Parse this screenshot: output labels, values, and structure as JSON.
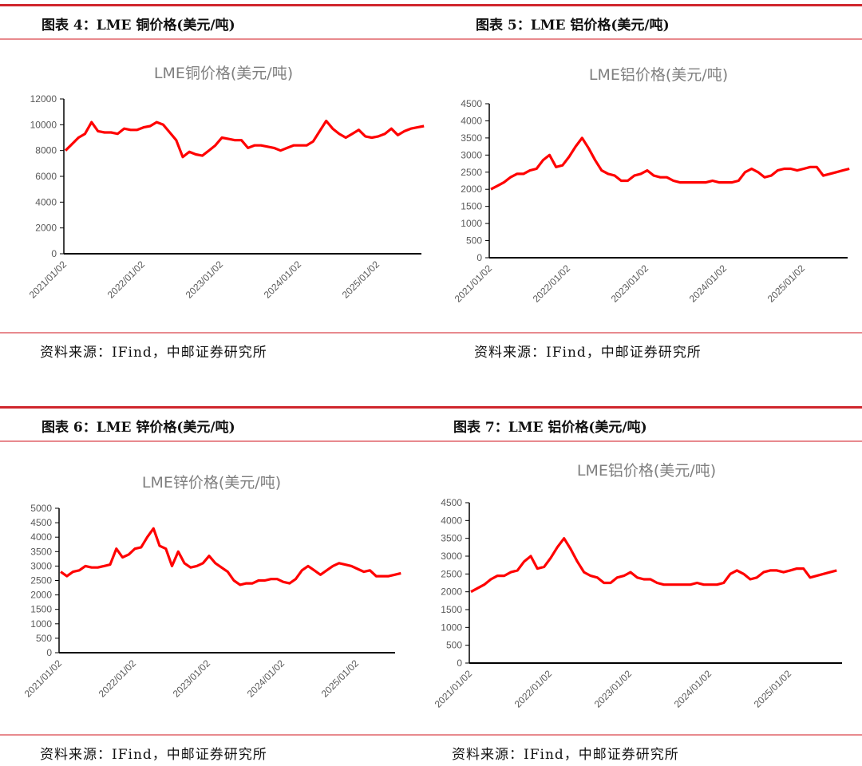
{
  "panels": [
    {
      "heading": "图表 4：LME 铜价格(美元/吨)",
      "source": "资料来源：IFind，中邮证券研究所"
    },
    {
      "heading": "图表 5：LME 铝价格(美元/吨)",
      "source": "资料来源：IFind，中邮证券研究所"
    },
    {
      "heading": "图表 6：LME 锌价格(美元/吨)",
      "source": "资料来源：IFind，中邮证券研究所"
    },
    {
      "heading": "图表 7：LME 铝价格(美元/吨)",
      "source": "资料来源：IFind，中邮证券研究所"
    }
  ],
  "colors": {
    "line": "#ff0000",
    "rule": "#d0262d",
    "title": "#7f7f7f"
  },
  "chart_data": [
    {
      "type": "line",
      "title": "LME铜价格(美元/吨)",
      "xlabel": "",
      "ylabel": "",
      "ylim": [
        0,
        12000
      ],
      "yticks": [
        "0",
        "2000",
        "4000",
        "6000",
        "8000",
        "10000",
        "12000"
      ],
      "xticks": [
        "2021/01/02",
        "2022/01/02",
        "2023/01/02",
        "2024/01/02",
        "2025/01/02"
      ],
      "grid": false,
      "x": [
        "2021-01",
        "2021-02",
        "2021-03",
        "2021-04",
        "2021-05",
        "2021-06",
        "2021-07",
        "2021-08",
        "2021-09",
        "2021-10",
        "2021-11",
        "2021-12",
        "2022-01",
        "2022-02",
        "2022-03",
        "2022-04",
        "2022-05",
        "2022-06",
        "2022-07",
        "2022-08",
        "2022-09",
        "2022-10",
        "2022-11",
        "2022-12",
        "2023-01",
        "2023-02",
        "2023-03",
        "2023-04",
        "2023-05",
        "2023-06",
        "2023-07",
        "2023-08",
        "2023-09",
        "2023-10",
        "2023-11",
        "2023-12",
        "2024-01",
        "2024-02",
        "2024-03",
        "2024-04",
        "2024-05",
        "2024-06",
        "2024-07",
        "2024-08",
        "2024-09",
        "2024-10",
        "2024-11",
        "2024-12",
        "2025-01",
        "2025-02",
        "2025-03",
        "2025-04",
        "2025-05",
        "2025-06",
        "2025-07",
        "2025-08"
      ],
      "y": [
        8000,
        8500,
        9000,
        9300,
        10200,
        9500,
        9400,
        9400,
        9300,
        9700,
        9600,
        9600,
        9800,
        9900,
        10200,
        10000,
        9400,
        8800,
        7500,
        7900,
        7700,
        7600,
        8000,
        8400,
        9000,
        8900,
        8800,
        8800,
        8200,
        8400,
        8400,
        8300,
        8200,
        8000,
        8200,
        8400,
        8400,
        8400,
        8700,
        9500,
        10300,
        9700,
        9300,
        9000,
        9300,
        9600,
        9100,
        9000,
        9100,
        9300,
        9700,
        9200,
        9500,
        9700,
        9800,
        9900
      ]
    },
    {
      "type": "line",
      "title": "LME铝价格(美元/吨)",
      "xlabel": "",
      "ylabel": "",
      "ylim": [
        0,
        4500
      ],
      "yticks": [
        "0",
        "500",
        "1000",
        "1500",
        "2000",
        "2500",
        "3000",
        "3500",
        "4000",
        "4500"
      ],
      "xticks": [
        "2021/01/02",
        "2022/01/02",
        "2023/01/02",
        "2024/01/02",
        "2025/01/02"
      ],
      "grid": false,
      "x": [
        "2021-01",
        "2021-02",
        "2021-03",
        "2021-04",
        "2021-05",
        "2021-06",
        "2021-07",
        "2021-08",
        "2021-09",
        "2021-10",
        "2021-11",
        "2021-12",
        "2022-01",
        "2022-02",
        "2022-03",
        "2022-04",
        "2022-05",
        "2022-06",
        "2022-07",
        "2022-08",
        "2022-09",
        "2022-10",
        "2022-11",
        "2022-12",
        "2023-01",
        "2023-02",
        "2023-03",
        "2023-04",
        "2023-05",
        "2023-06",
        "2023-07",
        "2023-08",
        "2023-09",
        "2023-10",
        "2023-11",
        "2023-12",
        "2024-01",
        "2024-02",
        "2024-03",
        "2024-04",
        "2024-05",
        "2024-06",
        "2024-07",
        "2024-08",
        "2024-09",
        "2024-10",
        "2024-11",
        "2024-12",
        "2025-01",
        "2025-02",
        "2025-03",
        "2025-04",
        "2025-05",
        "2025-06",
        "2025-07",
        "2025-08"
      ],
      "y": [
        2000,
        2100,
        2200,
        2350,
        2450,
        2450,
        2550,
        2600,
        2850,
        3000,
        2650,
        2700,
        2950,
        3250,
        3500,
        3200,
        2850,
        2550,
        2450,
        2400,
        2250,
        2250,
        2400,
        2450,
        2550,
        2400,
        2350,
        2350,
        2250,
        2200,
        2200,
        2200,
        2200,
        2200,
        2250,
        2200,
        2200,
        2200,
        2250,
        2500,
        2600,
        2500,
        2350,
        2400,
        2550,
        2600,
        2600,
        2550,
        2600,
        2650,
        2650,
        2400,
        2450,
        2500,
        2550,
        2600
      ]
    },
    {
      "type": "line",
      "title": "LME锌价格(美元/吨)",
      "xlabel": "",
      "ylabel": "",
      "ylim": [
        0,
        5000
      ],
      "yticks": [
        "0",
        "500",
        "1000",
        "1500",
        "2000",
        "2500",
        "3000",
        "3500",
        "4000",
        "4500",
        "5000"
      ],
      "xticks": [
        "2021/01/02",
        "2022/01/02",
        "2023/01/02",
        "2024/01/02",
        "2025/01/02"
      ],
      "grid": false,
      "x": [
        "2021-01",
        "2021-02",
        "2021-03",
        "2021-04",
        "2021-05",
        "2021-06",
        "2021-07",
        "2021-08",
        "2021-09",
        "2021-10",
        "2021-11",
        "2021-12",
        "2022-01",
        "2022-02",
        "2022-03",
        "2022-04",
        "2022-05",
        "2022-06",
        "2022-07",
        "2022-08",
        "2022-09",
        "2022-10",
        "2022-11",
        "2022-12",
        "2023-01",
        "2023-02",
        "2023-03",
        "2023-04",
        "2023-05",
        "2023-06",
        "2023-07",
        "2023-08",
        "2023-09",
        "2023-10",
        "2023-11",
        "2023-12",
        "2024-01",
        "2024-02",
        "2024-03",
        "2024-04",
        "2024-05",
        "2024-06",
        "2024-07",
        "2024-08",
        "2024-09",
        "2024-10",
        "2024-11",
        "2024-12",
        "2025-01",
        "2025-02",
        "2025-03",
        "2025-04",
        "2025-05",
        "2025-06",
        "2025-07",
        "2025-08"
      ],
      "y": [
        2800,
        2650,
        2800,
        2850,
        3000,
        2950,
        2950,
        3000,
        3050,
        3600,
        3300,
        3400,
        3600,
        3650,
        4000,
        4300,
        3700,
        3600,
        3000,
        3500,
        3100,
        2950,
        3000,
        3100,
        3350,
        3100,
        2950,
        2800,
        2500,
        2350,
        2400,
        2400,
        2500,
        2500,
        2550,
        2550,
        2450,
        2400,
        2550,
        2850,
        3000,
        2850,
        2700,
        2850,
        3000,
        3100,
        3050,
        3000,
        2900,
        2800,
        2850,
        2650,
        2650,
        2650,
        2700,
        2750
      ]
    },
    {
      "type": "line",
      "title": "LME铝价格(美元/吨)",
      "xlabel": "",
      "ylabel": "",
      "ylim": [
        0,
        4500
      ],
      "yticks": [
        "0",
        "500",
        "1000",
        "1500",
        "2000",
        "2500",
        "3000",
        "3500",
        "4000",
        "4500"
      ],
      "xticks": [
        "2021/01/02",
        "2022/01/02",
        "2023/01/02",
        "2024/01/02",
        "2025/01/02"
      ],
      "grid": false,
      "x": [
        "2021-01",
        "2021-02",
        "2021-03",
        "2021-04",
        "2021-05",
        "2021-06",
        "2021-07",
        "2021-08",
        "2021-09",
        "2021-10",
        "2021-11",
        "2021-12",
        "2022-01",
        "2022-02",
        "2022-03",
        "2022-04",
        "2022-05",
        "2022-06",
        "2022-07",
        "2022-08",
        "2022-09",
        "2022-10",
        "2022-11",
        "2022-12",
        "2023-01",
        "2023-02",
        "2023-03",
        "2023-04",
        "2023-05",
        "2023-06",
        "2023-07",
        "2023-08",
        "2023-09",
        "2023-10",
        "2023-11",
        "2023-12",
        "2024-01",
        "2024-02",
        "2024-03",
        "2024-04",
        "2024-05",
        "2024-06",
        "2024-07",
        "2024-08",
        "2024-09",
        "2024-10",
        "2024-11",
        "2024-12",
        "2025-01",
        "2025-02",
        "2025-03",
        "2025-04",
        "2025-05",
        "2025-06",
        "2025-07",
        "2025-08"
      ],
      "y": [
        2000,
        2100,
        2200,
        2350,
        2450,
        2450,
        2550,
        2600,
        2850,
        3000,
        2650,
        2700,
        2950,
        3250,
        3500,
        3200,
        2850,
        2550,
        2450,
        2400,
        2250,
        2250,
        2400,
        2450,
        2550,
        2400,
        2350,
        2350,
        2250,
        2200,
        2200,
        2200,
        2200,
        2200,
        2250,
        2200,
        2200,
        2200,
        2250,
        2500,
        2600,
        2500,
        2350,
        2400,
        2550,
        2600,
        2600,
        2550,
        2600,
        2650,
        2650,
        2400,
        2450,
        2500,
        2550,
        2600
      ]
    }
  ]
}
